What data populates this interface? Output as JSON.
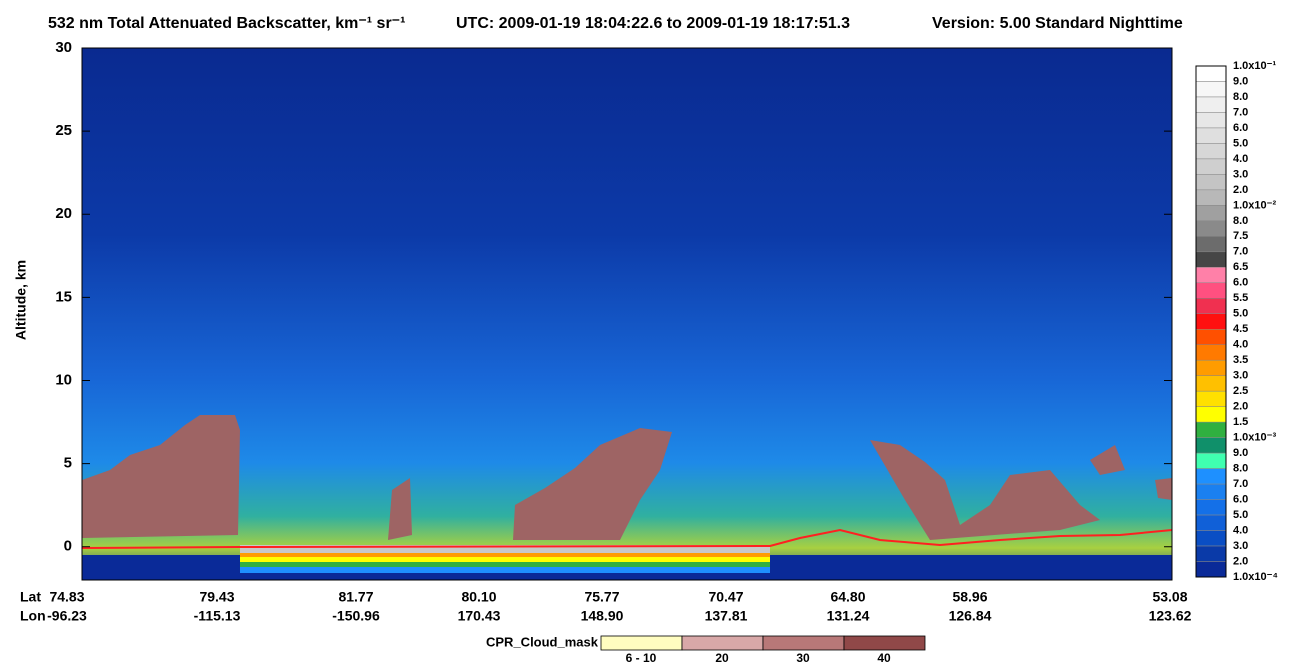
{
  "chart_data": {
    "type": "curtain",
    "title": "532 nm Total Attenuated Backscatter, km⁻¹ sr⁻¹",
    "utc": "UTC:  2009-01-19 18:04:22.6  to  2009-01-19 18:17:51.3",
    "version": "Version: 5.00  Standard  Nighttime",
    "y_label": "Altitude, km",
    "ylim": [
      -2,
      30
    ],
    "yticks": [
      0,
      5,
      10,
      15,
      20,
      25,
      30
    ],
    "lat_label": "Lat",
    "lon_label": "Lon",
    "lat": [
      "74.83",
      "79.43",
      "81.77",
      "80.10",
      "75.77",
      "70.47",
      "64.80",
      "58.96",
      "53.08"
    ],
    "lon": [
      "-96.23",
      "-115.13",
      "-150.96",
      "170.43",
      "148.90",
      "137.81",
      "131.24",
      "126.84",
      "123.62"
    ],
    "colorbar_labels": [
      "1.0x10⁻¹",
      "9.0",
      "8.0",
      "7.0",
      "6.0",
      "5.0",
      "4.0",
      "3.0",
      "2.0",
      "1.0x10⁻²",
      "8.0",
      "7.5",
      "7.0",
      "6.5",
      "6.0",
      "5.5",
      "5.0",
      "4.5",
      "4.0",
      "3.5",
      "3.0",
      "2.5",
      "2.0",
      "1.5",
      "1.0x10⁻³",
      "9.0",
      "8.0",
      "7.0",
      "6.0",
      "5.0",
      "4.0",
      "3.0",
      "2.0",
      "1.0x10⁻⁴"
    ],
    "colorbar_colors": [
      "#ffffff",
      "#f7f7f7",
      "#efefef",
      "#e7e7e7",
      "#dfdfdf",
      "#d7d7d7",
      "#cfcfcf",
      "#c4c4c4",
      "#b8b8b8",
      "#a0a0a0",
      "#8a8a8a",
      "#6c6c6c",
      "#464646",
      "#ff80a8",
      "#ff5080",
      "#f03050",
      "#ff1010",
      "#ff5000",
      "#ff7a00",
      "#ff9c00",
      "#ffc000",
      "#ffe000",
      "#ffff00",
      "#30b040",
      "#10906a",
      "#40ffb0",
      "#1e90ff",
      "#1a80f0",
      "#1470e8",
      "#1060d8",
      "#0a4ec4",
      "#0a3aa8",
      "#0a2a98"
    ],
    "mask_label": "CPR_Cloud_mask",
    "mask_categories": [
      "6 - 10",
      "20",
      "30",
      "40"
    ],
    "mask_colors": [
      "#fffdc0",
      "#d8a8a8",
      "#b87878",
      "#904848"
    ]
  }
}
